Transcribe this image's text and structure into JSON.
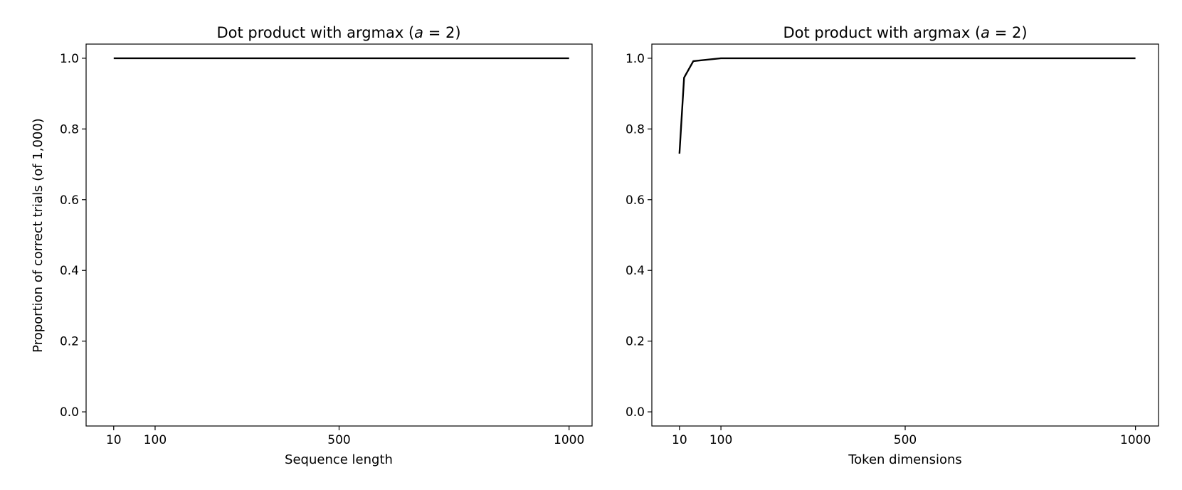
{
  "chart_data": [
    {
      "type": "line",
      "title": "Dot product with argmax (a = 2)",
      "title_parts": {
        "pre": "Dot product with argmax (",
        "var": "a",
        "post": " = 2)"
      },
      "xlabel": "Sequence length",
      "ylabel": "Proportion of correct trials (of 1,000)",
      "xlim": [
        -50,
        1050
      ],
      "ylim": [
        -0.04,
        1.04
      ],
      "xticks": [
        10,
        100,
        500,
        1000
      ],
      "xtick_labels": [
        "10",
        "100",
        "500",
        "1000"
      ],
      "yticks": [
        0.0,
        0.2,
        0.4,
        0.6,
        0.8,
        1.0
      ],
      "ytick_labels": [
        "0.0",
        "0.2",
        "0.4",
        "0.6",
        "0.8",
        "1.0"
      ],
      "grid": false,
      "series": [
        {
          "x": [
            10,
            20,
            30,
            50,
            100,
            200,
            300,
            400,
            500,
            600,
            700,
            800,
            900,
            1000
          ],
          "y": [
            1.0,
            1.0,
            1.0,
            1.0,
            1.0,
            1.0,
            1.0,
            1.0,
            1.0,
            1.0,
            1.0,
            1.0,
            1.0,
            1.0
          ],
          "color": "#000000"
        }
      ]
    },
    {
      "type": "line",
      "title": "Dot product with argmax (a = 2)",
      "title_parts": {
        "pre": "Dot product with argmax (",
        "var": "a",
        "post": " = 2)"
      },
      "xlabel": "Token dimensions",
      "ylabel": "",
      "xlim": [
        -50,
        1050
      ],
      "ylim": [
        -0.04,
        1.04
      ],
      "xticks": [
        10,
        100,
        500,
        1000
      ],
      "xtick_labels": [
        "10",
        "100",
        "500",
        "1000"
      ],
      "yticks": [
        0.0,
        0.2,
        0.4,
        0.6,
        0.8,
        1.0
      ],
      "ytick_labels": [
        "0.0",
        "0.2",
        "0.4",
        "0.6",
        "0.8",
        "1.0"
      ],
      "grid": false,
      "series": [
        {
          "x": [
            10,
            20,
            40,
            100,
            200,
            300,
            400,
            500,
            600,
            700,
            800,
            900,
            1000
          ],
          "y": [
            0.73,
            0.945,
            0.992,
            1.0,
            1.0,
            1.0,
            1.0,
            1.0,
            1.0,
            1.0,
            1.0,
            1.0,
            1.0
          ],
          "color": "#000000"
        }
      ]
    }
  ]
}
